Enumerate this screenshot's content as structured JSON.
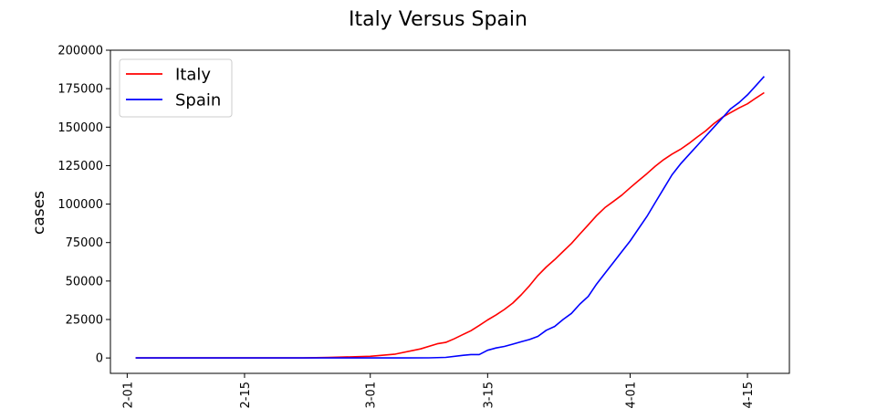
{
  "chart_data": {
    "type": "line",
    "title": "Italy Versus Spain",
    "xlabel": "",
    "ylabel": "cases",
    "x_ticks": [
      "2-01",
      "2-15",
      "3-01",
      "3-15",
      "4-01",
      "4-15"
    ],
    "x_tick_dates": [
      "2020-02-01",
      "2020-02-15",
      "2020-03-01",
      "2020-03-15",
      "2020-04-01",
      "2020-04-15"
    ],
    "xlim": [
      "2020-01-30",
      "2020-04-20"
    ],
    "y_ticks": [
      0,
      25000,
      50000,
      75000,
      100000,
      125000,
      150000,
      175000,
      200000
    ],
    "y_tick_labels": [
      "0",
      "25000",
      "50000",
      "75000",
      "100000",
      "125000",
      "150000",
      "175000",
      "200000"
    ],
    "ylim": [
      -10000,
      200000
    ],
    "grid": false,
    "legend_position": "top-left",
    "series": [
      {
        "name": "Italy",
        "color": "#ff0000",
        "x": [
          "2020-02-02",
          "2020-02-15",
          "2020-02-22",
          "2020-02-25",
          "2020-03-01",
          "2020-03-04",
          "2020-03-07",
          "2020-03-09",
          "2020-03-10",
          "2020-03-11",
          "2020-03-12",
          "2020-03-13",
          "2020-03-14",
          "2020-03-15",
          "2020-03-16",
          "2020-03-17",
          "2020-03-18",
          "2020-03-19",
          "2020-03-20",
          "2020-03-21",
          "2020-03-22",
          "2020-03-23",
          "2020-03-24",
          "2020-03-25",
          "2020-03-26",
          "2020-03-27",
          "2020-03-28",
          "2020-03-29",
          "2020-03-30",
          "2020-03-31",
          "2020-04-01",
          "2020-04-02",
          "2020-04-03",
          "2020-04-04",
          "2020-04-05",
          "2020-04-06",
          "2020-04-07",
          "2020-04-08",
          "2020-04-09",
          "2020-04-10",
          "2020-04-11",
          "2020-04-12",
          "2020-04-13",
          "2020-04-14",
          "2020-04-15",
          "2020-04-16",
          "2020-04-17"
        ],
        "y": [
          0,
          0,
          30,
          300,
          1100,
          2500,
          5900,
          9200,
          10100,
          12400,
          15100,
          17700,
          21100,
          24700,
          27900,
          31500,
          35700,
          41000,
          47000,
          53600,
          59100,
          63900,
          69200,
          74400,
          80500,
          86500,
          92500,
          97700,
          101700,
          105800,
          110600,
          115200,
          119800,
          124600,
          128900,
          132500,
          135600,
          139400,
          143600,
          147500,
          152300,
          156400,
          159500,
          162500,
          165200,
          168900,
          172400
        ]
      },
      {
        "name": "Spain",
        "color": "#0000ff",
        "x": [
          "2020-02-02",
          "2020-02-20",
          "2020-02-25",
          "2020-02-29",
          "2020-03-02",
          "2020-03-05",
          "2020-03-08",
          "2020-03-10",
          "2020-03-12",
          "2020-03-13",
          "2020-03-14",
          "2020-03-15",
          "2020-03-16",
          "2020-03-17",
          "2020-03-18",
          "2020-03-19",
          "2020-03-20",
          "2020-03-21",
          "2020-03-22",
          "2020-03-23",
          "2020-03-24",
          "2020-03-25",
          "2020-03-26",
          "2020-03-27",
          "2020-03-28",
          "2020-03-29",
          "2020-03-30",
          "2020-03-31",
          "2020-04-01",
          "2020-04-02",
          "2020-04-03",
          "2020-04-04",
          "2020-04-05",
          "2020-04-06",
          "2020-04-07",
          "2020-04-08",
          "2020-04-09",
          "2020-04-10",
          "2020-04-11",
          "2020-04-12",
          "2020-04-13",
          "2020-04-14",
          "2020-04-15",
          "2020-04-16",
          "2020-04-17"
        ],
        "y": [
          0,
          0,
          0,
          0,
          0,
          0,
          100,
          400,
          1700,
          2200,
          2200,
          5000,
          6500,
          7500,
          9000,
          10500,
          12000,
          14000,
          18000,
          20500,
          25000,
          29000,
          35000,
          40000,
          48000,
          55000,
          62000,
          69000,
          76000,
          84000,
          92000,
          101000,
          110000,
          119000,
          126000,
          132000,
          138000,
          144000,
          150000,
          156000,
          162000,
          166000,
          171000,
          177000,
          183000
        ]
      }
    ]
  }
}
